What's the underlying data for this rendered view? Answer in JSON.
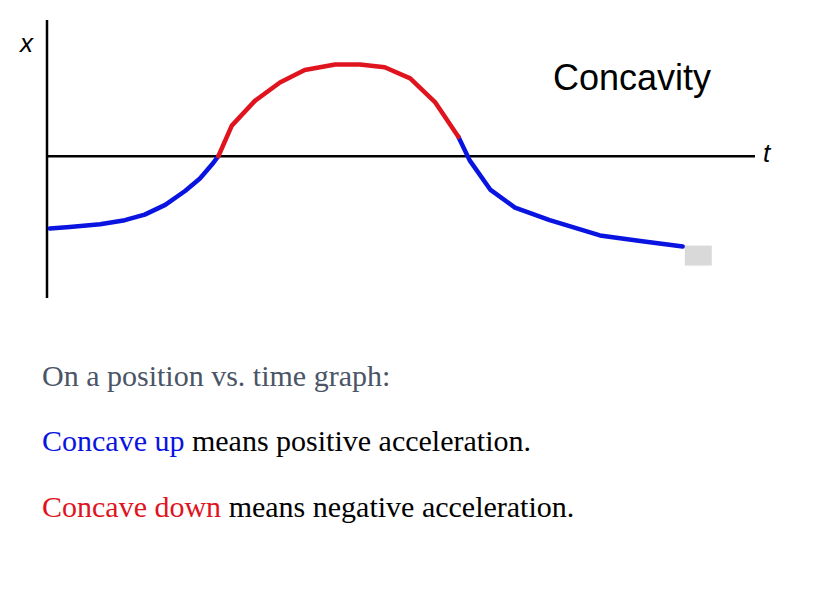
{
  "chart_data": {
    "type": "line",
    "title": "Concavity",
    "x_label": "t",
    "y_label": "x",
    "tick_labels": false,
    "grid": false,
    "xlim": [
      0,
      100
    ],
    "ylim": [
      -10.2,
      9.8
    ],
    "x": [
      0.4,
      3.2,
      7.5,
      11.0,
      13.8,
      16.7,
      19.5,
      21.6,
      23.3,
      24.2,
      26.1,
      29.4,
      32.9,
      36.4,
      40.7,
      44.2,
      47.7,
      51.3,
      54.8,
      58.1,
      59.7,
      62.6,
      66.1,
      71.0,
      78.1,
      83.8,
      89.8
    ],
    "series": [
      {
        "color": "#0a14e0",
        "values": [
          -5.2,
          -5.1,
          -4.9,
          -4.6,
          -4.2,
          -3.5,
          -2.5,
          -1.6,
          -0.6,
          0,
          null,
          null,
          null,
          null,
          null,
          null,
          null,
          null,
          null,
          1.4,
          -0.3,
          -2.4,
          -3.7,
          -4.6,
          -5.7,
          -6.1,
          -6.5
        ]
      },
      {
        "color": "#e0141e",
        "values": [
          null,
          null,
          null,
          null,
          null,
          null,
          null,
          null,
          null,
          0,
          2.2,
          4.0,
          5.3,
          6.2,
          6.6,
          6.6,
          6.4,
          5.6,
          3.9,
          1.4,
          null,
          null,
          null,
          null,
          null,
          null,
          null
        ]
      }
    ],
    "annotations": [
      [
        {
          "text": "On a position vs. time graph:",
          "color": "#4a5566"
        }
      ],
      [
        {
          "text": "Concave up",
          "color": "#0a14e0"
        },
        {
          "text": " means positive acceleration.",
          "color": "#000000"
        }
      ],
      [
        {
          "text": "Concave down",
          "color": "#e0141e"
        },
        {
          "text": " means negative acceleration.",
          "color": "#000000"
        }
      ]
    ]
  }
}
